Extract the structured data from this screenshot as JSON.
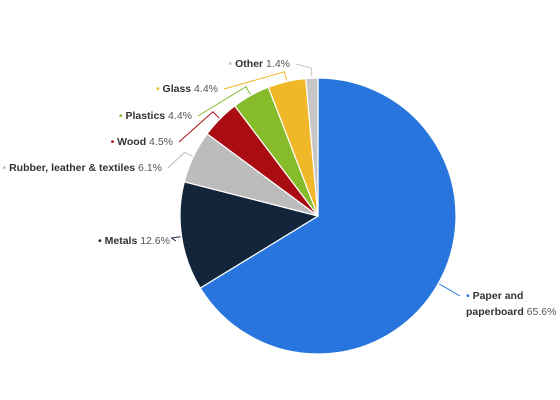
{
  "chart_data": {
    "type": "pie",
    "title": "",
    "slices": [
      {
        "label": "Paper and paperboard",
        "value": 65.6,
        "value_label": "65.6%",
        "color": "#2876dd",
        "label_lines": [
          "Paper and",
          "paperboard"
        ]
      },
      {
        "label": "Metals",
        "value": 12.6,
        "value_label": "12.6%",
        "color": "#13253a",
        "label_lines": [
          "Metals"
        ]
      },
      {
        "label": "Rubber, leather & textiles",
        "value": 6.1,
        "value_label": "6.1%",
        "color": "#bcbcbc",
        "label_lines": [
          "Rubber, leather & textiles"
        ]
      },
      {
        "label": "Wood",
        "value": 4.5,
        "value_label": "4.5%",
        "color": "#a90d13",
        "label_lines": [
          "Wood"
        ]
      },
      {
        "label": "Plastics",
        "value": 4.4,
        "value_label": "4.4%",
        "color": "#86bb2a",
        "label_lines": [
          "Plastics"
        ]
      },
      {
        "label": "Glass",
        "value": 4.4,
        "value_label": "4.4%",
        "color": "#f0b828",
        "label_lines": [
          "Glass"
        ]
      },
      {
        "label": "Other",
        "value": 1.4,
        "value_label": "1.4%",
        "color": "#c6c6c6",
        "label_lines": [
          "Other"
        ]
      }
    ],
    "legend": "none"
  }
}
